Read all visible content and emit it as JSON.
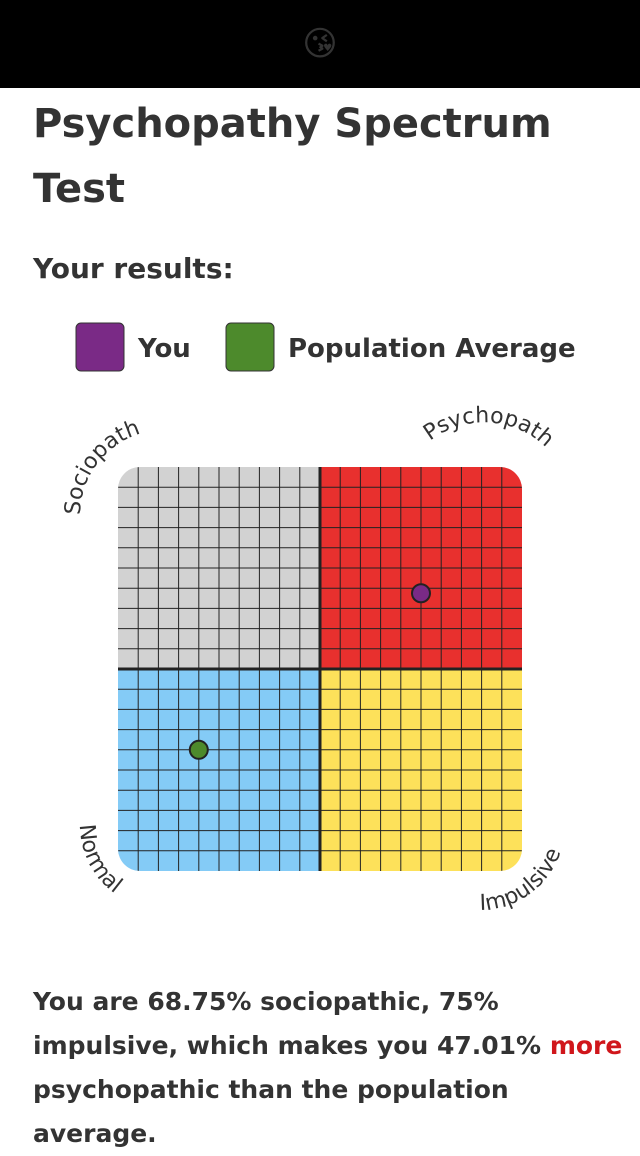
{
  "top_bar": {
    "emoji": "😘"
  },
  "title": "Psychopathy Spectrum Test",
  "subtitle": "Your results:",
  "chart_data": {
    "type": "scatter",
    "xlim": [
      0,
      100
    ],
    "ylim": [
      0,
      100
    ],
    "corner_labels": {
      "top_left": "Sociopath",
      "top_right": "Psychopath",
      "bottom_left": "Normal",
      "bottom_right": "Impulsive"
    },
    "quadrant_colors": {
      "top_left": "#d2d2d2",
      "top_right": "#e8302e",
      "bottom_left": "#84cbf6",
      "bottom_right": "#fde15a"
    },
    "series": [
      {
        "name": "You",
        "color": "#7a2a86",
        "x": [
          75
        ],
        "values": [
          68.75
        ]
      },
      {
        "name": "Population Average",
        "color": "#4d8a2c",
        "x": [
          20
        ],
        "values": [
          30
        ]
      }
    ]
  },
  "result": {
    "before": "You are 68.75% sociopathic, 75% impulsive, which makes you 47.01%",
    "highlight": "more",
    "after": "psychopathic than the population average."
  }
}
